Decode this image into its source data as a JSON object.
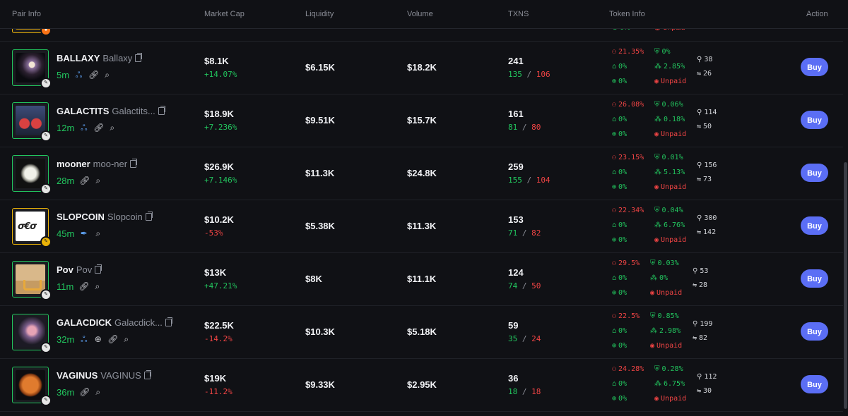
{
  "header": {
    "pair_info": "Pair Info",
    "market_cap": "Market Cap",
    "liquidity": "Liquidity",
    "volume": "Volume",
    "txns": "TXNS",
    "token_info": "Token Info",
    "action": "Action"
  },
  "partial_row": {
    "top10": "0%",
    "dex_paid": "Unpaid"
  },
  "rows": [
    {
      "symbol": "BALLAXY",
      "name": "Ballaxy",
      "age": "5m",
      "market_cap": "$8.1K",
      "change": "+14.07%",
      "liquidity": "$6.15K",
      "volume": "$18.2K",
      "txns": "241",
      "buys": "135",
      "sells": "106",
      "t1": "21.35%",
      "t2": "0%",
      "t3": "0%",
      "t4": "2.85%",
      "t5": "0%",
      "dex": "Unpaid",
      "holders": "38",
      "pro": "26",
      "buy": "Buy"
    },
    {
      "symbol": "GALACTITS",
      "name": "Galactits...",
      "age": "12m",
      "market_cap": "$18.9K",
      "change": "+7.236%",
      "liquidity": "$9.51K",
      "volume": "$15.7K",
      "txns": "161",
      "buys": "81",
      "sells": "80",
      "t1": "26.08%",
      "t2": "0.06%",
      "t3": "0%",
      "t4": "0.18%",
      "t5": "0%",
      "dex": "Unpaid",
      "holders": "114",
      "pro": "50",
      "buy": "Buy"
    },
    {
      "symbol": "mooner",
      "name": "moo-ner",
      "age": "28m",
      "market_cap": "$26.9K",
      "change": "+7.146%",
      "liquidity": "$11.3K",
      "volume": "$24.8K",
      "txns": "259",
      "buys": "155",
      "sells": "104",
      "t1": "23.15%",
      "t2": "0.01%",
      "t3": "0%",
      "t4": "5.13%",
      "t5": "0%",
      "dex": "Unpaid",
      "holders": "156",
      "pro": "73",
      "buy": "Buy"
    },
    {
      "symbol": "SLOPCOIN",
      "name": "Slopcoin",
      "age": "45m",
      "market_cap": "$10.2K",
      "change": "-53%",
      "liquidity": "$5.38K",
      "volume": "$11.3K",
      "txns": "153",
      "buys": "71",
      "sells": "82",
      "t1": "22.34%",
      "t2": "0.04%",
      "t3": "0%",
      "t4": "6.76%",
      "t5": "0%",
      "dex": "Unpaid",
      "holders": "300",
      "pro": "142",
      "buy": "Buy"
    },
    {
      "symbol": "Pov",
      "name": "Pov",
      "age": "11m",
      "market_cap": "$13K",
      "change": "+47.21%",
      "liquidity": "$8K",
      "volume": "$11.1K",
      "txns": "124",
      "buys": "74",
      "sells": "50",
      "t1": "29.5%",
      "t2": "0.03%",
      "t3": "0%",
      "t4": "0%",
      "t5": "0%",
      "dex": "Unpaid",
      "holders": "53",
      "pro": "28",
      "buy": "Buy"
    },
    {
      "symbol": "GALACDICK",
      "name": "Galacdick...",
      "age": "32m",
      "market_cap": "$22.5K",
      "change": "-14.2%",
      "liquidity": "$10.3K",
      "volume": "$5.18K",
      "txns": "59",
      "buys": "35",
      "sells": "24",
      "t1": "22.5%",
      "t2": "0.85%",
      "t3": "0%",
      "t4": "2.98%",
      "t5": "0%",
      "dex": "Unpaid",
      "holders": "199",
      "pro": "82",
      "buy": "Buy"
    },
    {
      "symbol": "VAGINUS",
      "name": "VAGINUS",
      "age": "36m",
      "market_cap": "$19K",
      "change": "-11.2%",
      "liquidity": "$9.33K",
      "volume": "$2.95K",
      "txns": "36",
      "buys": "18",
      "sells": "18",
      "t1": "24.28%",
      "t2": "0.28%",
      "t3": "0%",
      "t4": "6.75%",
      "t5": "0%",
      "dex": "Unpaid",
      "holders": "112",
      "pro": "30",
      "buy": "Buy"
    }
  ],
  "colors": {
    "accent": "#5b6ef5",
    "positive": "#22c55e",
    "negative": "#ef4444",
    "background": "#101115"
  }
}
